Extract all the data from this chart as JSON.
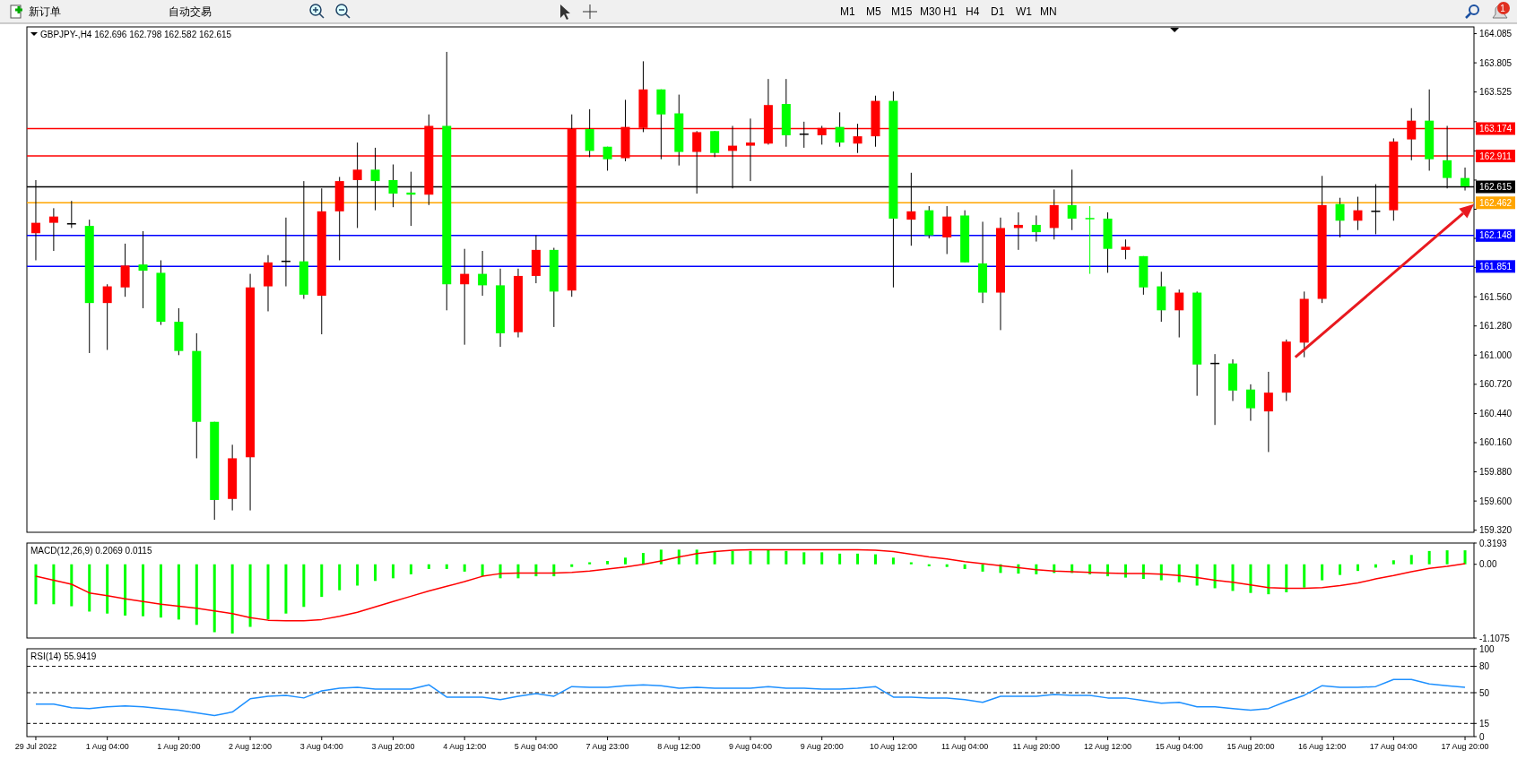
{
  "chart_data": [
    {
      "type": "other",
      "annotations": [
        "新订单",
        "自动交易",
        "M1",
        "M5",
        "M15",
        "M30",
        "H1",
        "H4",
        "D1",
        "W1",
        "MN",
        "1"
      ]
    },
    {
      "type": "candlestick",
      "title": "GBPJPY-,H4  162.696 162.798 162.582 162.615",
      "categories": [
        null,
        null,
        null,
        null,
        null,
        null,
        null,
        null,
        null,
        null,
        null,
        null,
        null,
        null,
        null,
        null,
        null,
        null,
        null,
        null,
        null,
        null,
        null,
        null,
        null,
        null,
        null,
        null,
        null,
        null,
        null,
        null,
        null,
        null,
        null,
        null,
        null,
        null,
        null,
        null,
        null,
        null,
        null,
        null,
        null,
        null,
        null,
        null,
        null,
        null,
        null,
        null,
        null,
        null,
        null,
        null,
        null,
        null,
        null,
        null,
        null,
        null,
        null,
        null,
        null,
        null,
        null,
        null,
        null,
        null,
        null,
        null,
        null,
        null,
        null,
        null,
        null,
        null,
        null,
        null,
        null
      ],
      "ohlc": [
        [
          162.17,
          162.68,
          161.91,
          162.27
        ],
        [
          162.27,
          162.41,
          162.0,
          162.33
        ],
        [
          162.26,
          162.48,
          162.22,
          162.26
        ],
        [
          162.24,
          162.3,
          161.02,
          161.5
        ],
        [
          161.5,
          161.68,
          161.05,
          161.66
        ],
        [
          161.65,
          162.07,
          161.56,
          161.86
        ],
        [
          161.87,
          162.19,
          161.45,
          161.81
        ],
        [
          161.79,
          161.91,
          161.29,
          161.32
        ],
        [
          161.32,
          161.45,
          161.0,
          161.04
        ],
        [
          161.04,
          161.21,
          160.01,
          160.36
        ],
        [
          160.36,
          160.36,
          159.42,
          159.61
        ],
        [
          159.62,
          160.14,
          159.51,
          160.01
        ],
        [
          160.02,
          161.78,
          159.51,
          161.65
        ],
        [
          161.66,
          161.96,
          161.42,
          161.89
        ],
        [
          161.9,
          162.32,
          161.66,
          161.9
        ],
        [
          161.9,
          162.67,
          161.54,
          161.58
        ],
        [
          161.57,
          162.6,
          161.2,
          162.38
        ],
        [
          162.38,
          162.71,
          161.91,
          162.67
        ],
        [
          162.68,
          163.04,
          162.22,
          162.78
        ],
        [
          162.78,
          162.99,
          162.39,
          162.67
        ],
        [
          162.68,
          162.83,
          162.42,
          162.55
        ],
        [
          162.56,
          162.76,
          162.24,
          162.54
        ],
        [
          162.54,
          163.31,
          162.44,
          163.2
        ],
        [
          163.2,
          163.91,
          161.43,
          161.68
        ],
        [
          161.68,
          162.02,
          161.1,
          161.78
        ],
        [
          161.78,
          162.0,
          161.57,
          161.67
        ],
        [
          161.67,
          161.83,
          161.08,
          161.21
        ],
        [
          161.22,
          161.83,
          161.17,
          161.76
        ],
        [
          161.76,
          162.15,
          161.69,
          162.01
        ],
        [
          162.01,
          162.03,
          161.27,
          161.61
        ],
        [
          161.62,
          163.31,
          161.56,
          163.17
        ],
        [
          163.17,
          163.36,
          162.9,
          162.96
        ],
        [
          163.0,
          163.0,
          162.77,
          162.88
        ],
        [
          162.89,
          163.45,
          162.86,
          163.19
        ],
        [
          163.18,
          163.82,
          163.14,
          163.55
        ],
        [
          163.55,
          163.55,
          162.88,
          163.31
        ],
        [
          163.32,
          163.5,
          162.82,
          162.95
        ],
        [
          162.95,
          163.15,
          162.55,
          163.14
        ],
        [
          163.15,
          163.15,
          162.9,
          162.94
        ],
        [
          162.96,
          163.2,
          162.6,
          163.01
        ],
        [
          163.01,
          163.27,
          162.67,
          163.04
        ],
        [
          163.03,
          163.65,
          163.02,
          163.4
        ],
        [
          163.41,
          163.65,
          163.0,
          163.11
        ],
        [
          163.12,
          163.24,
          162.99,
          163.12
        ],
        [
          163.11,
          163.2,
          163.02,
          163.18
        ],
        [
          163.19,
          163.33,
          163.0,
          163.04
        ],
        [
          163.03,
          163.22,
          162.94,
          163.1
        ],
        [
          163.1,
          163.49,
          163.0,
          163.44
        ],
        [
          163.44,
          163.53,
          161.65,
          162.31
        ],
        [
          162.3,
          162.75,
          162.05,
          162.38
        ],
        [
          162.39,
          162.43,
          162.12,
          162.15
        ],
        [
          162.13,
          162.43,
          161.97,
          162.33
        ],
        [
          162.34,
          162.39,
          161.89,
          161.89
        ],
        [
          161.88,
          162.28,
          161.5,
          161.6
        ],
        [
          161.6,
          162.32,
          161.24,
          162.22
        ],
        [
          162.22,
          162.37,
          162.01,
          162.25
        ],
        [
          162.25,
          162.34,
          162.09,
          162.18
        ],
        [
          162.22,
          162.59,
          162.11,
          162.44
        ],
        [
          162.44,
          162.78,
          162.2,
          162.31
        ],
        [
          162.31,
          162.43,
          161.78,
          162.31
        ],
        [
          162.31,
          162.37,
          161.79,
          162.02
        ],
        [
          162.01,
          162.11,
          161.92,
          162.04
        ],
        [
          161.95,
          161.95,
          161.58,
          161.65
        ],
        [
          161.66,
          161.8,
          161.32,
          161.43
        ],
        [
          161.43,
          161.63,
          161.17,
          161.6
        ],
        [
          161.6,
          161.61,
          160.61,
          160.91
        ],
        [
          160.92,
          161.01,
          160.33,
          160.92
        ],
        [
          160.92,
          160.96,
          160.56,
          160.66
        ],
        [
          160.67,
          160.72,
          160.37,
          160.49
        ],
        [
          160.46,
          160.84,
          160.07,
          160.64
        ],
        [
          160.64,
          161.15,
          160.56,
          161.13
        ],
        [
          161.12,
          161.61,
          160.98,
          161.54
        ],
        [
          161.54,
          162.72,
          161.5,
          162.44
        ],
        [
          162.45,
          162.51,
          162.13,
          162.29
        ],
        [
          162.29,
          162.52,
          162.2,
          162.39
        ],
        [
          162.38,
          162.64,
          162.16,
          162.38
        ],
        [
          162.39,
          163.08,
          162.29,
          163.05
        ],
        [
          163.07,
          163.37,
          162.87,
          163.25
        ],
        [
          163.25,
          163.55,
          162.77,
          162.88
        ],
        [
          162.87,
          163.2,
          162.6,
          162.7
        ],
        [
          162.7,
          162.8,
          162.58,
          162.62
        ]
      ],
      "colors": [
        "#ff0000",
        "#ff0000",
        "#000000",
        "#00ff00",
        "#ff0000",
        "#ff0000",
        "#00ff00",
        "#00ff00",
        "#00ff00",
        "#00ff00",
        "#00ff00",
        "#ff0000",
        "#ff0000",
        "#ff0000",
        "#000000",
        "#00ff00",
        "#ff0000",
        "#ff0000",
        "#ff0000",
        "#00ff00",
        "#00ff00",
        "#00ff00",
        "#ff0000",
        "#00ff00",
        "#ff0000",
        "#00ff00",
        "#00ff00",
        "#ff0000",
        "#ff0000",
        "#00ff00",
        "#ff0000",
        "#00ff00",
        "#00ff00",
        "#ff0000",
        "#ff0000",
        "#00ff00",
        "#00ff00",
        "#ff0000",
        "#00ff00",
        "#ff0000",
        "#ff0000",
        "#ff0000",
        "#00ff00",
        "#000000",
        "#ff0000",
        "#00ff00",
        "#ff0000",
        "#ff0000",
        "#00ff00",
        "#ff0000",
        "#00ff00",
        "#ff0000",
        "#00ff00",
        "#00ff00",
        "#ff0000",
        "#ff0000",
        "#00ff00",
        "#ff0000",
        "#00ff00",
        "#00ff00",
        "#00ff00",
        "#ff0000",
        "#00ff00",
        "#00ff00",
        "#ff0000",
        "#00ff00",
        "#000000",
        "#00ff00",
        "#00ff00",
        "#ff0000",
        "#ff0000",
        "#ff0000",
        "#ff0000",
        "#00ff00",
        "#ff0000",
        "#000000",
        "#ff0000",
        "#ff0000",
        "#00ff00",
        "#00ff00",
        "#00ff00"
      ],
      "ylim": [
        159.3,
        164.15
      ],
      "yticks": [
        {
          "value": 164.085,
          "label": "164.085"
        },
        {
          "value": 163.805,
          "label": "163.805"
        },
        {
          "value": 163.525,
          "label": "163.525"
        },
        {
          "value": 163.24,
          "label": null
        },
        {
          "value": 162.96,
          "label": null
        },
        {
          "value": 162.68,
          "label": null
        },
        {
          "value": 162.4,
          "label": null
        },
        {
          "value": 162.12,
          "label": null
        },
        {
          "value": 161.84,
          "label": null
        },
        {
          "value": 161.56,
          "label": "161.560"
        },
        {
          "value": 161.28,
          "label": "161.280"
        },
        {
          "value": 161.0,
          "label": "161.000"
        },
        {
          "value": 160.72,
          "label": "160.720"
        },
        {
          "value": 160.44,
          "label": "160.440"
        },
        {
          "value": 160.16,
          "label": "160.160"
        },
        {
          "value": 159.88,
          "label": "159.880"
        },
        {
          "value": 159.6,
          "label": "159.600"
        },
        {
          "value": 159.32,
          "label": "159.320"
        }
      ],
      "tick_labels": "y",
      "ref_lines": [
        {
          "axis": "y",
          "value": 163.174,
          "label": "163.174",
          "color": "#ff0000"
        },
        {
          "axis": "y",
          "value": 162.911,
          "label": "162.911",
          "color": "#ff0000"
        },
        {
          "axis": "y",
          "value": 162.615,
          "label": "162.615",
          "color": "#000000"
        },
        {
          "axis": "y",
          "value": 162.462,
          "label": "162.462",
          "color": "#ffa500"
        },
        {
          "axis": "y",
          "value": 162.148,
          "label": "162.148",
          "color": "#0000ff"
        },
        {
          "axis": "y",
          "value": 161.851,
          "label": "161.851",
          "color": "#0000ff"
        }
      ]
    },
    {
      "type": "bar",
      "title": "MACD(12,26,9) 0.2069 0.0115",
      "categories": [
        null,
        null,
        null,
        null,
        null,
        null,
        null,
        null,
        null,
        null,
        null,
        null,
        null,
        null,
        null,
        null,
        null,
        null,
        null,
        null,
        null,
        null,
        null,
        null,
        null,
        null,
        null,
        null,
        null,
        null,
        null,
        null,
        null,
        null,
        null,
        null,
        null,
        null,
        null,
        null,
        null,
        null,
        null,
        null,
        null,
        null,
        null,
        null,
        null,
        null,
        null,
        null,
        null,
        null,
        null,
        null,
        null,
        null,
        null,
        null,
        null,
        null,
        null,
        null,
        null,
        null,
        null,
        null,
        null,
        null,
        null,
        null,
        null,
        null,
        null,
        null,
        null,
        null,
        null,
        null,
        null
      ],
      "series": [
        {
          "color": "#00ff00",
          "values": [
            -0.6,
            -0.6,
            -0.63,
            -0.71,
            -0.74,
            -0.77,
            -0.78,
            -0.8,
            -0.83,
            -0.91,
            -1.02,
            -1.04,
            -0.94,
            -0.83,
            -0.74,
            -0.64,
            -0.49,
            -0.39,
            -0.32,
            -0.25,
            -0.21,
            -0.15,
            -0.07,
            -0.07,
            -0.11,
            -0.18,
            -0.21,
            -0.21,
            -0.18,
            -0.18,
            -0.04,
            0.03,
            0.05,
            0.1,
            0.17,
            0.22,
            0.22,
            0.22,
            0.2,
            0.2,
            0.2,
            0.22,
            0.2,
            0.18,
            0.18,
            0.16,
            0.16,
            0.15,
            0.1,
            0.03,
            -0.03,
            -0.04,
            -0.07,
            -0.11,
            -0.13,
            -0.14,
            -0.15,
            -0.13,
            -0.13,
            -0.15,
            -0.18,
            -0.2,
            -0.22,
            -0.24,
            -0.27,
            -0.32,
            -0.36,
            -0.4,
            -0.43,
            -0.45,
            -0.42,
            -0.35,
            -0.24,
            -0.16,
            -0.1,
            -0.05,
            0.06,
            0.14,
            0.2,
            0.21,
            0.21
          ]
        },
        {
          "type": "line",
          "color": "#ff0000",
          "values": [
            -0.18,
            -0.24,
            -0.3,
            -0.43,
            -0.47,
            -0.52,
            -0.56,
            -0.6,
            -0.63,
            -0.66,
            -0.7,
            -0.74,
            -0.8,
            -0.84,
            -0.85,
            -0.85,
            -0.83,
            -0.78,
            -0.72,
            -0.64,
            -0.56,
            -0.48,
            -0.4,
            -0.33,
            -0.26,
            -0.18,
            -0.14,
            -0.13,
            -0.13,
            -0.13,
            -0.12,
            -0.1,
            -0.07,
            -0.04,
            0.0,
            0.05,
            0.11,
            0.16,
            0.19,
            0.21,
            0.22,
            0.22,
            0.22,
            0.22,
            0.22,
            0.22,
            0.22,
            0.21,
            0.19,
            0.15,
            0.11,
            0.08,
            0.04,
            0.01,
            -0.02,
            -0.05,
            -0.08,
            -0.1,
            -0.11,
            -0.12,
            -0.13,
            -0.14,
            -0.14,
            -0.15,
            -0.17,
            -0.2,
            -0.24,
            -0.27,
            -0.31,
            -0.35,
            -0.36,
            -0.36,
            -0.35,
            -0.32,
            -0.28,
            -0.22,
            -0.17,
            -0.11,
            -0.06,
            -0.03,
            0.01
          ]
        }
      ],
      "ylim": [
        -1.1075,
        0.3193
      ],
      "yticks": [
        0.3193,
        {
          "value": 0,
          "label": "0.00"
        },
        -1.1075
      ],
      "tick_labels": "y"
    },
    {
      "type": "line",
      "title": "RSI(14) 55.9419",
      "categories": [
        "29 Jul 2022",
        null,
        null,
        null,
        "1 Aug 04:00",
        null,
        null,
        null,
        "1 Aug 20:00",
        null,
        null,
        null,
        "2 Aug 12:00",
        null,
        null,
        null,
        "3 Aug 04:00",
        null,
        null,
        null,
        "3 Aug 20:00",
        null,
        null,
        null,
        "4 Aug 12:00",
        null,
        null,
        null,
        "5 Aug 04:00",
        null,
        null,
        null,
        "7 Aug 23:00",
        null,
        null,
        null,
        "8 Aug 12:00",
        null,
        null,
        null,
        "9 Aug 04:00",
        null,
        null,
        null,
        "9 Aug 20:00",
        null,
        null,
        null,
        "10 Aug 12:00",
        null,
        null,
        null,
        "11 Aug 04:00",
        null,
        null,
        null,
        "11 Aug 20:00",
        null,
        null,
        null,
        "12 Aug 12:00",
        null,
        null,
        null,
        "15 Aug 04:00",
        null,
        null,
        null,
        "15 Aug 20:00",
        null,
        null,
        null,
        "16 Aug 12:00",
        null,
        null,
        null,
        "17 Aug 04:00",
        null,
        null,
        null,
        "17 Aug 20:00"
      ],
      "series": [
        {
          "color": "#1e90ff",
          "values": [
            37,
            37,
            33,
            32,
            34,
            35,
            34,
            32,
            30,
            27,
            24,
            28,
            43,
            46,
            47,
            44,
            52,
            55,
            56,
            54,
            54,
            54,
            59,
            45,
            45,
            45,
            42,
            46,
            49,
            46,
            57,
            56,
            56,
            58,
            59,
            58,
            55,
            56,
            55,
            55,
            55,
            57,
            55,
            55,
            54,
            54,
            55,
            57,
            45,
            45,
            44,
            44,
            42,
            39,
            46,
            46,
            46,
            48,
            47,
            47,
            44,
            44,
            41,
            38,
            39,
            34,
            34,
            32,
            30,
            32,
            40,
            47,
            58,
            56,
            56,
            57,
            65,
            65,
            60,
            58,
            56
          ]
        }
      ],
      "ylim": [
        0,
        100
      ],
      "yticks": [
        100,
        80,
        50,
        15,
        0
      ],
      "ref_lines": [
        {
          "axis": "y",
          "value": 80,
          "line_style": "dashed",
          "color": "#000000"
        },
        {
          "axis": "y",
          "value": 50,
          "line_style": "dashed",
          "color": "#000000"
        },
        {
          "axis": "y",
          "value": 15,
          "line_style": "dashed",
          "color": "#000000"
        }
      ]
    }
  ]
}
